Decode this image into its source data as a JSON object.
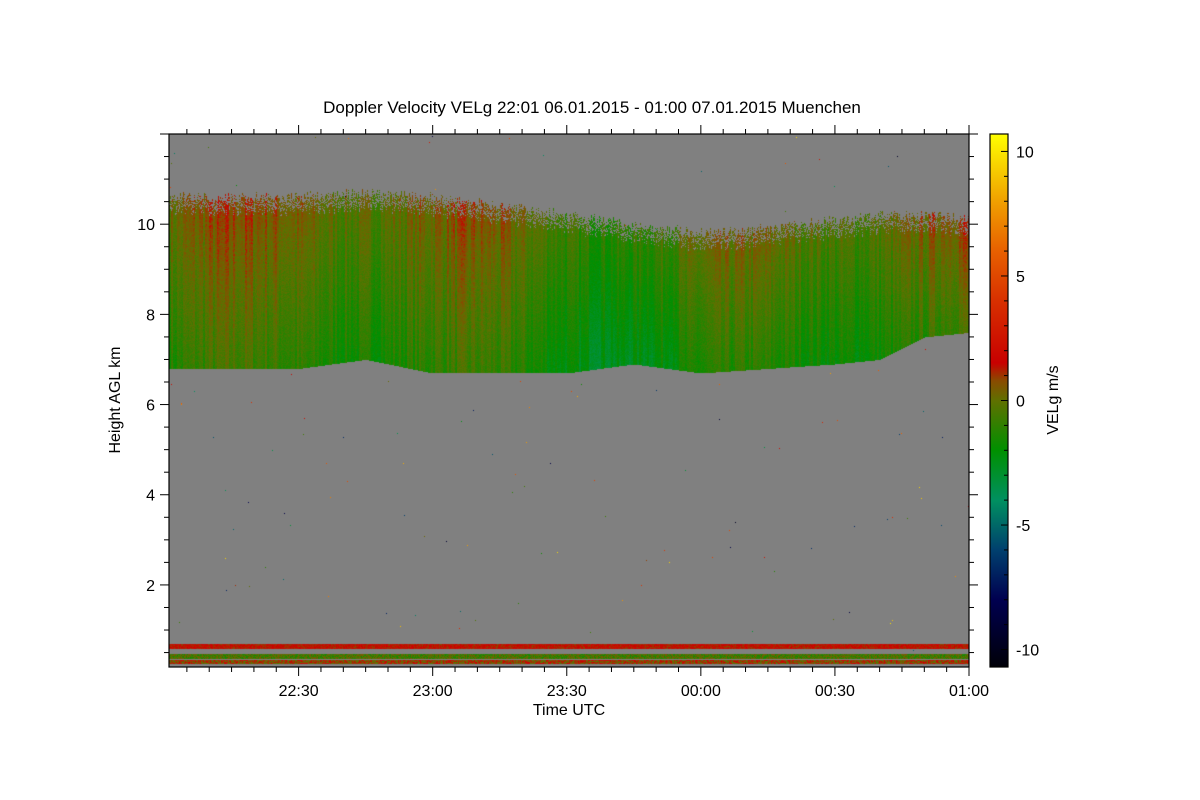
{
  "chart_data": {
    "type": "heatmap",
    "title": "Doppler Velocity VELg   22:01 06.01.2015 - 01:00 07.01.2015 Muenchen",
    "xlabel": "Time UTC",
    "ylabel": "Height AGL km",
    "xlim_minutes_after_2200": [
      1,
      180
    ],
    "ylim": [
      0.18,
      12.0
    ],
    "x_ticks": [
      {
        "label": "22:30",
        "min": 30
      },
      {
        "label": "23:00",
        "min": 60
      },
      {
        "label": "23:30",
        "min": 90
      },
      {
        "label": "00:00",
        "min": 120
      },
      {
        "label": "00:30",
        "min": 150
      },
      {
        "label": "01:00",
        "min": 180
      }
    ],
    "y_ticks": [
      {
        "label": "2",
        "v": 2
      },
      {
        "label": "4",
        "v": 4
      },
      {
        "label": "6",
        "v": 6
      },
      {
        "label": "8",
        "v": 8
      },
      {
        "label": "10",
        "v": 10
      }
    ],
    "colorbar": {
      "label": "VELg m/s",
      "range": [
        -10.7,
        10.7
      ],
      "ticks": [
        {
          "label": "10",
          "v": 10
        },
        {
          "label": "5",
          "v": 5
        },
        {
          "label": "0",
          "v": 0
        },
        {
          "label": "-5",
          "v": -5
        },
        {
          "label": "-10",
          "v": -10
        }
      ],
      "stops": [
        [
          -10.7,
          "#000008"
        ],
        [
          -8,
          "#000050"
        ],
        [
          -6,
          "#00406e"
        ],
        [
          -4,
          "#009060"
        ],
        [
          -2,
          "#009000"
        ],
        [
          0,
          "#607000"
        ],
        [
          0.8,
          "#8a4a00"
        ],
        [
          1.5,
          "#c80000"
        ],
        [
          4,
          "#d83000"
        ],
        [
          6,
          "#e86000"
        ],
        [
          8,
          "#f0a000"
        ],
        [
          10.7,
          "#ffff00"
        ]
      ]
    },
    "background_color": "#808080",
    "cloud_layer": {
      "time_min": [
        1,
        15,
        30,
        45,
        60,
        75,
        90,
        105,
        120,
        135,
        150,
        160,
        170,
        180
      ],
      "top_km": [
        10.6,
        10.6,
        10.6,
        10.7,
        10.6,
        10.4,
        10.2,
        10.0,
        9.8,
        9.9,
        10.1,
        10.2,
        10.2,
        10.1
      ],
      "base_km": [
        6.8,
        6.8,
        6.8,
        7.0,
        6.7,
        6.7,
        6.7,
        6.9,
        6.7,
        6.8,
        6.9,
        7.0,
        7.5,
        7.6
      ],
      "mean_velocity_ms": -1.0
    },
    "near_ground_bands": [
      {
        "height_km": 0.65,
        "velocity_ms": 1.5
      },
      {
        "height_km": 0.42,
        "velocity_ms": -0.5
      },
      {
        "height_km": 0.3,
        "velocity_ms": 0.8
      }
    ]
  }
}
